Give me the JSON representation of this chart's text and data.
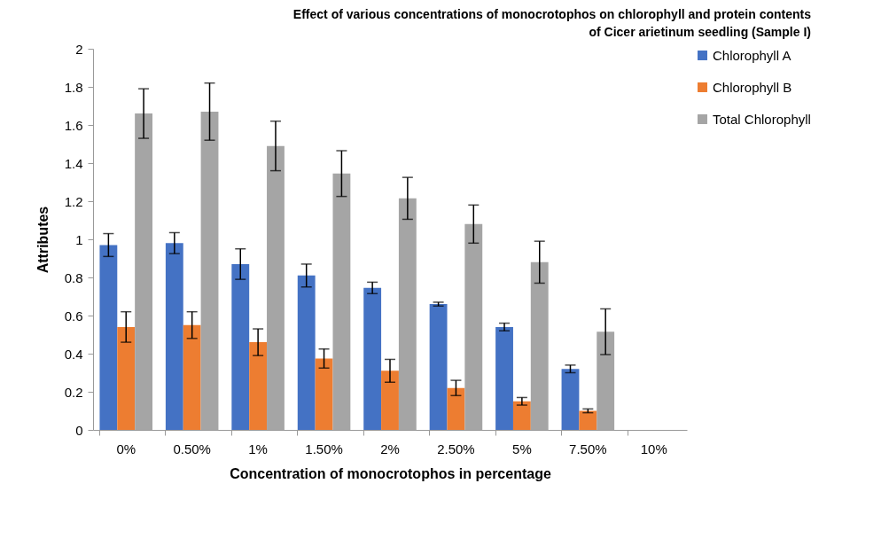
{
  "chart_data": {
    "type": "bar",
    "title": "Effect of various concentrations of monocrotophos on chlorophyll and protein contents of Cicer arietinum seedling (Sample I)",
    "xlabel": "Concentration of monocrotophos in percentage",
    "ylabel": "Attributes",
    "categories": [
      "0%",
      "0.50%",
      "1%",
      "1.50%",
      "2%",
      "2.50%",
      "5%",
      "7.50%",
      "10%"
    ],
    "series": [
      {
        "name": "Chlorophyll A",
        "color": "#4472c4",
        "values": [
          0.97,
          0.98,
          0.87,
          0.81,
          0.745,
          0.66,
          0.54,
          0.32,
          0
        ],
        "errors": [
          0.06,
          0.055,
          0.08,
          0.06,
          0.03,
          0.01,
          0.02,
          0.02,
          null
        ]
      },
      {
        "name": "Chlorophyll B",
        "color": "#ed7d31",
        "values": [
          0.54,
          0.55,
          0.46,
          0.375,
          0.31,
          0.22,
          0.15,
          0.1,
          0
        ],
        "errors": [
          0.08,
          0.07,
          0.07,
          0.05,
          0.06,
          0.04,
          0.02,
          0.01,
          null
        ]
      },
      {
        "name": "Total Chlorophyll",
        "color": "#a5a5a5",
        "values": [
          1.66,
          1.67,
          1.49,
          1.345,
          1.215,
          1.08,
          0.88,
          0.515,
          0
        ],
        "errors": [
          0.13,
          0.15,
          0.13,
          0.12,
          0.11,
          0.1,
          0.11,
          0.12,
          null
        ]
      }
    ],
    "ylim": [
      0,
      2
    ],
    "yticks": [
      0,
      0.2,
      0.4,
      0.6,
      0.8,
      1,
      1.2,
      1.4,
      1.6,
      1.8,
      2
    ],
    "grid": false,
    "legend": "right"
  }
}
